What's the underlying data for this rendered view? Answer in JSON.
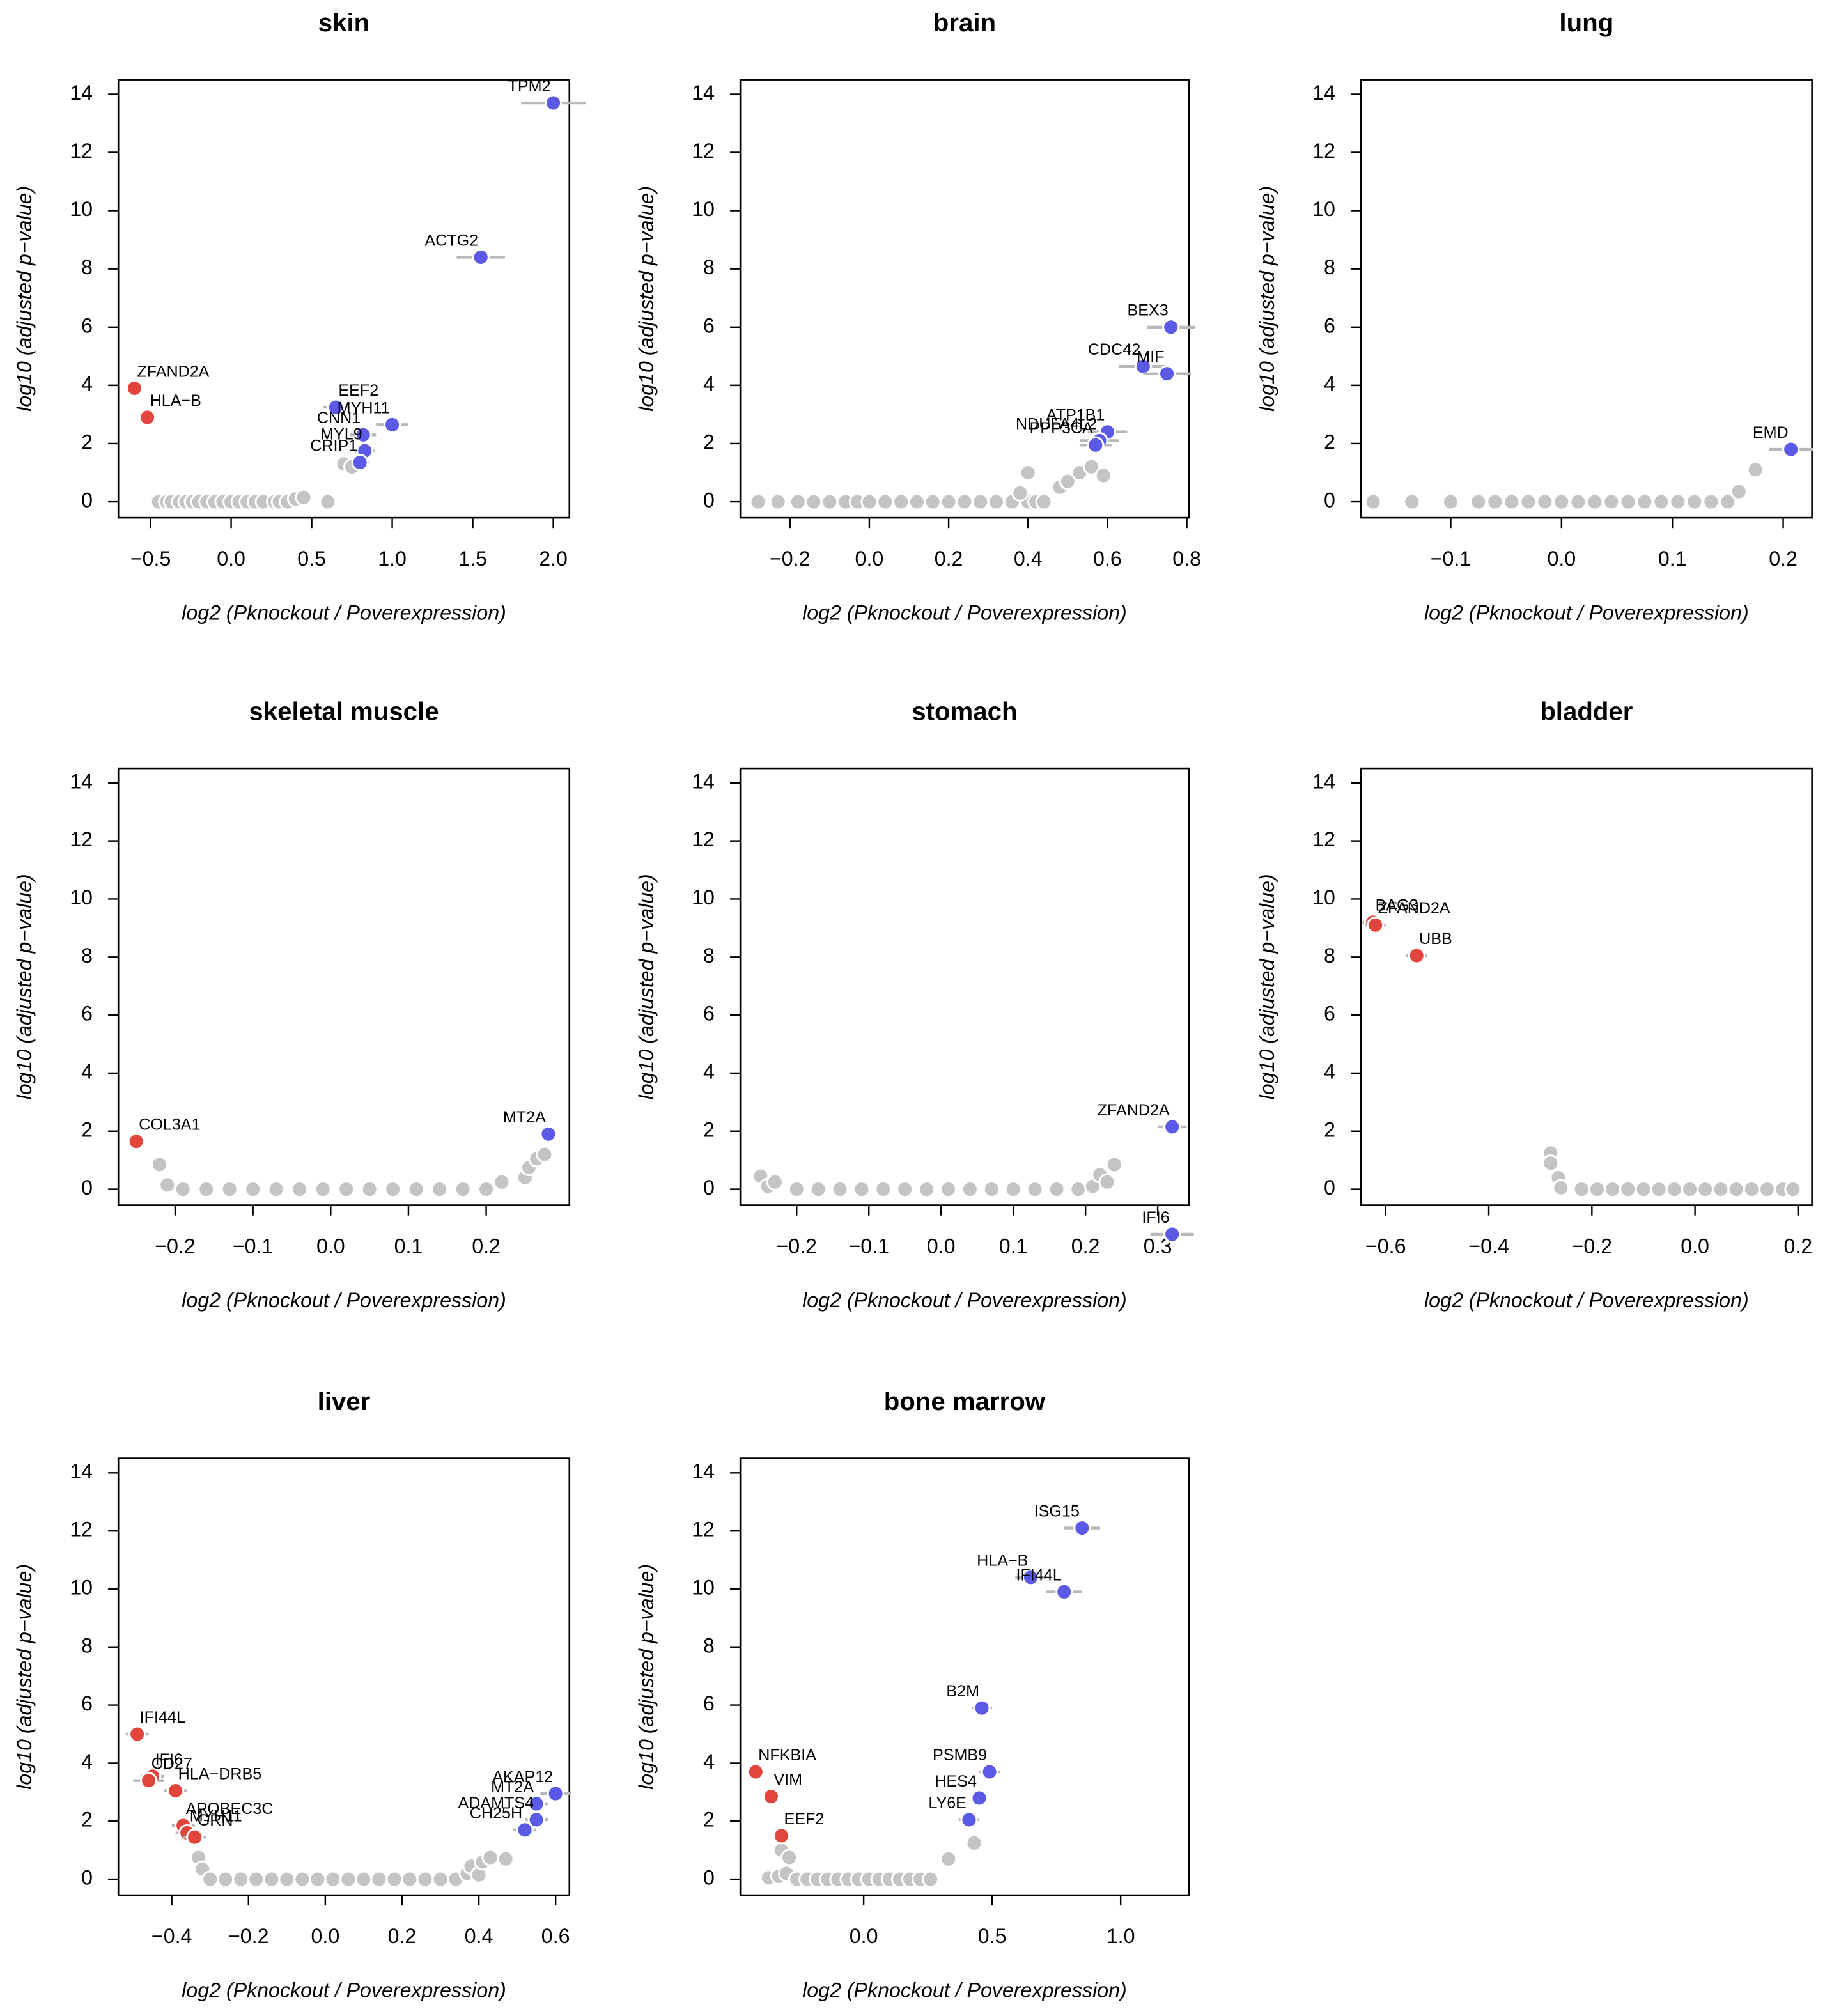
{
  "chart_data": [
    {
      "type": "scatter",
      "title": "skin",
      "xlabel": "log2 (Pknockout / Poverexpression)",
      "ylabel": "log10 (adjusted p−value)",
      "xlim": [
        -0.7,
        2.1
      ],
      "ylim": [
        -0.55,
        14.5
      ],
      "xticks": [
        {
          "value": -0.5,
          "label": "−0.5"
        },
        {
          "value": 0,
          "label": "0.0"
        },
        0.5,
        {
          "value": 1,
          "label": "1.0"
        },
        1.5,
        {
          "value": 2,
          "label": "2.0"
        }
      ],
      "yticks": [
        0,
        2,
        4,
        6,
        8,
        10,
        12,
        14
      ],
      "series": [
        {
          "color": "#c4c4c4",
          "x": [
            -0.45,
            -0.4,
            -0.37,
            -0.32,
            -0.28,
            -0.24,
            -0.2,
            -0.15,
            -0.1,
            -0.05,
            0.0,
            0.05,
            0.1,
            0.15,
            0.2,
            0.27,
            0.3,
            0.35,
            0.4,
            0.45,
            0.6,
            0.7,
            0.75
          ],
          "values": [
            0,
            0,
            0,
            0,
            0,
            0,
            0,
            0,
            0,
            0,
            0,
            0,
            0,
            0,
            0,
            0,
            0,
            0,
            0.1,
            0.15,
            0,
            1.3,
            1.2
          ]
        },
        {
          "color": "#e2453c",
          "x": [
            -0.6,
            -0.52
          ],
          "values": [
            3.9,
            2.9
          ],
          "xerr": [
            0.05,
            0.05
          ],
          "labels": [
            "ZFAND2A",
            "HLA−B"
          ]
        },
        {
          "color": "#5a5ae6",
          "x": [
            2.0,
            1.55,
            0.65,
            1.0,
            0.82,
            0.83,
            0.8
          ],
          "values": [
            13.7,
            8.4,
            3.25,
            2.65,
            2.3,
            1.75,
            1.35
          ],
          "xerr": [
            0.2,
            0.15,
            0.08,
            0.1,
            0.08,
            0.06,
            0.06
          ],
          "labels": [
            "TPM2",
            "ACTG2",
            "EEF2",
            "MYH11",
            "CNN1",
            "MYL9",
            "CRIP1"
          ]
        }
      ]
    },
    {
      "type": "scatter",
      "title": "brain",
      "xlabel": "log2 (Pknockout / Poverexpression)",
      "ylabel": "log10 (adjusted p−value)",
      "xlim": [
        -0.325,
        0.805
      ],
      "ylim": [
        -0.55,
        14.5
      ],
      "xticks": [
        {
          "value": -0.2,
          "label": "−0.2"
        },
        {
          "value": 0,
          "label": "0.0"
        },
        0.2,
        0.4,
        0.6,
        0.8
      ],
      "yticks": [
        0,
        2,
        4,
        6,
        8,
        10,
        12,
        14
      ],
      "series": [
        {
          "color": "#c4c4c4",
          "x": [
            -0.28,
            -0.23,
            -0.18,
            -0.14,
            -0.1,
            -0.06,
            -0.03,
            0.0,
            0.04,
            0.08,
            0.12,
            0.16,
            0.2,
            0.24,
            0.28,
            0.32,
            0.36,
            0.4,
            0.42,
            0.44,
            0.4,
            0.38,
            0.48,
            0.5,
            0.53,
            0.56,
            0.59
          ],
          "values": [
            0,
            0,
            0,
            0,
            0,
            0,
            0,
            0,
            0,
            0,
            0,
            0,
            0,
            0,
            0,
            0,
            0,
            0,
            0,
            0,
            1.0,
            0.3,
            0.5,
            0.7,
            1.0,
            1.2,
            0.9
          ]
        },
        {
          "color": "#5a5ae6",
          "x": [
            0.76,
            0.69,
            0.75,
            0.6,
            0.58,
            0.57
          ],
          "values": [
            6.0,
            4.65,
            4.4,
            2.4,
            2.1,
            1.95
          ],
          "xerr": [
            0.06,
            0.06,
            0.06,
            0.05,
            0.05,
            0.04
          ],
          "labels": [
            "BEX3",
            "CDC42",
            "MIF",
            "ATP1B1",
            "NDUFA4L2",
            "PPP3CA"
          ]
        }
      ]
    },
    {
      "type": "scatter",
      "title": "lung",
      "xlabel": "log2 (Pknockout / Poverexpression)",
      "ylabel": "log10 (adjusted p−value)",
      "xlim": [
        -0.181,
        0.226
      ],
      "ylim": [
        -0.55,
        14.5
      ],
      "xticks": [
        {
          "value": -0.1,
          "label": "−0.1"
        },
        {
          "value": 0,
          "label": "0.0"
        },
        0.1,
        0.2
      ],
      "yticks": [
        0,
        2,
        4,
        6,
        8,
        10,
        12,
        14
      ],
      "series": [
        {
          "color": "#c4c4c4",
          "x": [
            -0.17,
            -0.135,
            -0.1,
            -0.075,
            -0.06,
            -0.045,
            -0.03,
            -0.015,
            0.0,
            0.015,
            0.03,
            0.045,
            0.06,
            0.075,
            0.09,
            0.105,
            0.12,
            0.135,
            0.15,
            0.16,
            0.175
          ],
          "values": [
            0,
            0,
            0,
            0,
            0,
            0,
            0,
            0,
            0,
            0,
            0,
            0,
            0,
            0,
            0,
            0,
            0,
            0,
            0,
            0.35,
            1.1
          ]
        },
        {
          "color": "#5a5ae6",
          "x": [
            0.207
          ],
          "values": [
            1.8
          ],
          "xerr": [
            0.02
          ],
          "labels": [
            "EMD"
          ]
        }
      ]
    },
    {
      "type": "scatter",
      "title": "skeletal muscle",
      "xlabel": "log2 (Pknockout / Poverexpression)",
      "ylabel": "log10 (adjusted p−value)",
      "xlim": [
        -0.273,
        0.307
      ],
      "ylim": [
        -0.55,
        14.5
      ],
      "xticks": [
        {
          "value": -0.2,
          "label": "−0.2"
        },
        {
          "value": -0.1,
          "label": "−0.1"
        },
        {
          "value": 0,
          "label": "0.0"
        },
        0.1,
        0.2
      ],
      "yticks": [
        0,
        2,
        4,
        6,
        8,
        10,
        12,
        14
      ],
      "series": [
        {
          "color": "#c4c4c4",
          "x": [
            -0.22,
            -0.21,
            -0.19,
            -0.16,
            -0.13,
            -0.1,
            -0.07,
            -0.04,
            -0.01,
            0.02,
            0.05,
            0.08,
            0.11,
            0.14,
            0.17,
            0.2,
            0.22,
            0.25,
            0.255,
            0.265,
            0.275
          ],
          "values": [
            0.85,
            0.15,
            0,
            0,
            0,
            0,
            0,
            0,
            0,
            0,
            0,
            0,
            0,
            0,
            0,
            0,
            0.25,
            0.4,
            0.75,
            1.05,
            1.2
          ]
        },
        {
          "color": "#e2453c",
          "x": [
            -0.25
          ],
          "values": [
            1.65
          ],
          "xerr": [
            0.005
          ],
          "labels": [
            "COL3A1"
          ]
        },
        {
          "color": "#5a5ae6",
          "x": [
            0.28
          ],
          "values": [
            1.9
          ],
          "xerr": [
            0.005
          ],
          "labels": [
            "MT2A"
          ]
        }
      ]
    },
    {
      "type": "scatter",
      "title": "stomach",
      "xlabel": "log2 (Pknockout / Poverexpression)",
      "ylabel": "log10 (adjusted p−value)",
      "xlim": [
        -0.278,
        0.343
      ],
      "ylim": [
        -0.55,
        14.5
      ],
      "xticks": [
        {
          "value": -0.2,
          "label": "−0.2"
        },
        {
          "value": -0.1,
          "label": "−0.1"
        },
        {
          "value": 0,
          "label": "0.0"
        },
        0.1,
        0.2,
        0.3
      ],
      "yticks": [
        0,
        2,
        4,
        6,
        8,
        10,
        12,
        14
      ],
      "series": [
        {
          "color": "#c4c4c4",
          "x": [
            -0.25,
            -0.24,
            -0.23,
            -0.2,
            -0.17,
            -0.14,
            -0.11,
            -0.08,
            -0.05,
            -0.02,
            0.01,
            0.04,
            0.07,
            0.1,
            0.13,
            0.16,
            0.19,
            0.21,
            0.22,
            0.23,
            0.24
          ],
          "values": [
            0.45,
            0.1,
            0.25,
            0,
            0,
            0,
            0,
            0,
            0,
            0,
            0,
            0,
            0,
            0,
            0,
            0,
            0,
            0.1,
            0.5,
            0.25,
            0.85
          ]
        },
        {
          "color": "#5a5ae6",
          "x": [
            0.32,
            0.32
          ],
          "values": [
            2.15,
            -1.55
          ],
          "xerr": [
            0.02,
            0.03
          ],
          "labels": [
            "ZFAND2A",
            "IFI6"
          ]
        }
      ]
    },
    {
      "type": "scatter",
      "title": "bladder",
      "xlabel": "log2 (Pknockout / Poverexpression)",
      "ylabel": "log10 (adjusted p−value)",
      "xlim": [
        -0.648,
        0.227
      ],
      "ylim": [
        -0.55,
        14.5
      ],
      "xticks": [
        {
          "value": -0.6,
          "label": "−0.6"
        },
        {
          "value": -0.4,
          "label": "−0.4"
        },
        {
          "value": -0.2,
          "label": "−0.2"
        },
        {
          "value": 0,
          "label": "0.0"
        },
        0.2
      ],
      "yticks": [
        0,
        2,
        4,
        6,
        8,
        10,
        12,
        14
      ],
      "series": [
        {
          "color": "#c4c4c4",
          "x": [
            -0.28,
            -0.28,
            -0.265,
            -0.26,
            -0.22,
            -0.19,
            -0.16,
            -0.13,
            -0.1,
            -0.07,
            -0.04,
            -0.01,
            0.02,
            0.05,
            0.08,
            0.11,
            0.14,
            0.17,
            0.19
          ],
          "values": [
            1.25,
            0.9,
            0.4,
            0.05,
            0,
            0,
            0,
            0,
            0,
            0,
            0,
            0,
            0,
            0,
            0,
            0,
            0,
            0,
            0
          ]
        },
        {
          "color": "#e2453c",
          "x": [
            -0.625,
            -0.62,
            -0.54
          ],
          "values": [
            9.2,
            9.1,
            8.05
          ],
          "xerr": [
            0.02,
            0.02,
            0.02
          ],
          "labels": [
            "BAG3",
            "ZFAND2A",
            "UBB"
          ]
        }
      ]
    },
    {
      "type": "scatter",
      "title": "liver",
      "xlabel": "log2 (Pknockout / Poverexpression)",
      "ylabel": "log10 (adjusted p−value)",
      "xlim": [
        -0.539,
        0.636
      ],
      "ylim": [
        -0.55,
        14.5
      ],
      "xticks": [
        {
          "value": -0.4,
          "label": "−0.4"
        },
        {
          "value": -0.2,
          "label": "−0.2"
        },
        {
          "value": 0,
          "label": "0.0"
        },
        0.2,
        0.4,
        0.6
      ],
      "yticks": [
        0,
        2,
        4,
        6,
        8,
        10,
        12,
        14
      ],
      "series": [
        {
          "color": "#c4c4c4",
          "x": [
            -0.33,
            -0.32,
            -0.3,
            -0.26,
            -0.22,
            -0.18,
            -0.14,
            -0.1,
            -0.06,
            -0.02,
            0.02,
            0.06,
            0.1,
            0.14,
            0.18,
            0.22,
            0.26,
            0.3,
            0.34,
            0.37,
            0.38,
            0.4,
            0.41,
            0.43,
            0.47
          ],
          "values": [
            0.75,
            0.35,
            0,
            0,
            0,
            0,
            0,
            0,
            0,
            0,
            0,
            0,
            0,
            0,
            0,
            0,
            0,
            0,
            0,
            0.2,
            0.45,
            0.15,
            0.6,
            0.75,
            0.7
          ]
        },
        {
          "color": "#e2453c",
          "x": [
            -0.49,
            -0.45,
            -0.46,
            -0.39,
            -0.37,
            -0.36,
            -0.34
          ],
          "values": [
            5.0,
            3.55,
            3.4,
            3.05,
            1.85,
            1.6,
            1.45
          ],
          "xerr": [
            0.03,
            0.03,
            0.04,
            0.03,
            0.03,
            0.03,
            0.03
          ],
          "labels": [
            "IFI44L",
            "IFI6",
            "CD27",
            "HLA−DRB5",
            "APOBEC3C",
            "MYH11",
            "GRN"
          ]
        },
        {
          "color": "#5a5ae6",
          "x": [
            0.6,
            0.55,
            0.55,
            0.52
          ],
          "values": [
            2.95,
            2.6,
            2.05,
            1.7
          ],
          "xerr": [
            0.04,
            0.03,
            0.03,
            0.03
          ],
          "labels": [
            "AKAP12",
            "MT2A",
            "ADAMTS4",
            "CH25H"
          ]
        }
      ]
    },
    {
      "type": "scatter",
      "title": "bone marrow",
      "xlabel": "log2 (Pknockout / Poverexpression)",
      "ylabel": "log10 (adjusted p−value)",
      "xlim": [
        -0.48,
        1.265
      ],
      "ylim": [
        -0.55,
        14.5
      ],
      "xticks": [
        {
          "value": 0,
          "label": "0.0"
        },
        0.5,
        {
          "value": 1,
          "label": "1.0"
        }
      ],
      "yticks": [
        0,
        2,
        4,
        6,
        8,
        10,
        12,
        14
      ],
      "series": [
        {
          "color": "#c4c4c4",
          "x": [
            -0.32,
            -0.29,
            -0.37,
            -0.33,
            -0.3,
            -0.26,
            -0.22,
            -0.18,
            -0.14,
            -0.1,
            -0.06,
            -0.02,
            0.02,
            0.06,
            0.1,
            0.14,
            0.18,
            0.22,
            0.26,
            0.33,
            0.43
          ],
          "values": [
            1.0,
            0.75,
            0.05,
            0.1,
            0.2,
            0,
            0,
            0,
            0,
            0,
            0,
            0,
            0,
            0,
            0,
            0,
            0,
            0,
            0,
            0.7,
            1.25
          ]
        },
        {
          "color": "#e2453c",
          "x": [
            -0.42,
            -0.36,
            -0.32
          ],
          "values": [
            3.7,
            2.85,
            1.5
          ],
          "xerr": [
            0.03,
            0.03,
            0.03
          ],
          "labels": [
            "NFKBIA",
            "VIM",
            "EEF2"
          ]
        },
        {
          "color": "#5a5ae6",
          "x": [
            0.85,
            0.65,
            0.78,
            0.46,
            0.49,
            0.45,
            0.41
          ],
          "values": [
            12.1,
            10.4,
            9.9,
            5.9,
            3.7,
            2.8,
            2.05
          ],
          "xerr": [
            0.07,
            0.06,
            0.07,
            0.04,
            0.04,
            0.03,
            0.04
          ],
          "labels": [
            "ISG15",
            "HLA−B",
            "IFI44L",
            "B2M",
            "PSMB9",
            "HES4",
            "LY6E"
          ]
        }
      ]
    }
  ]
}
